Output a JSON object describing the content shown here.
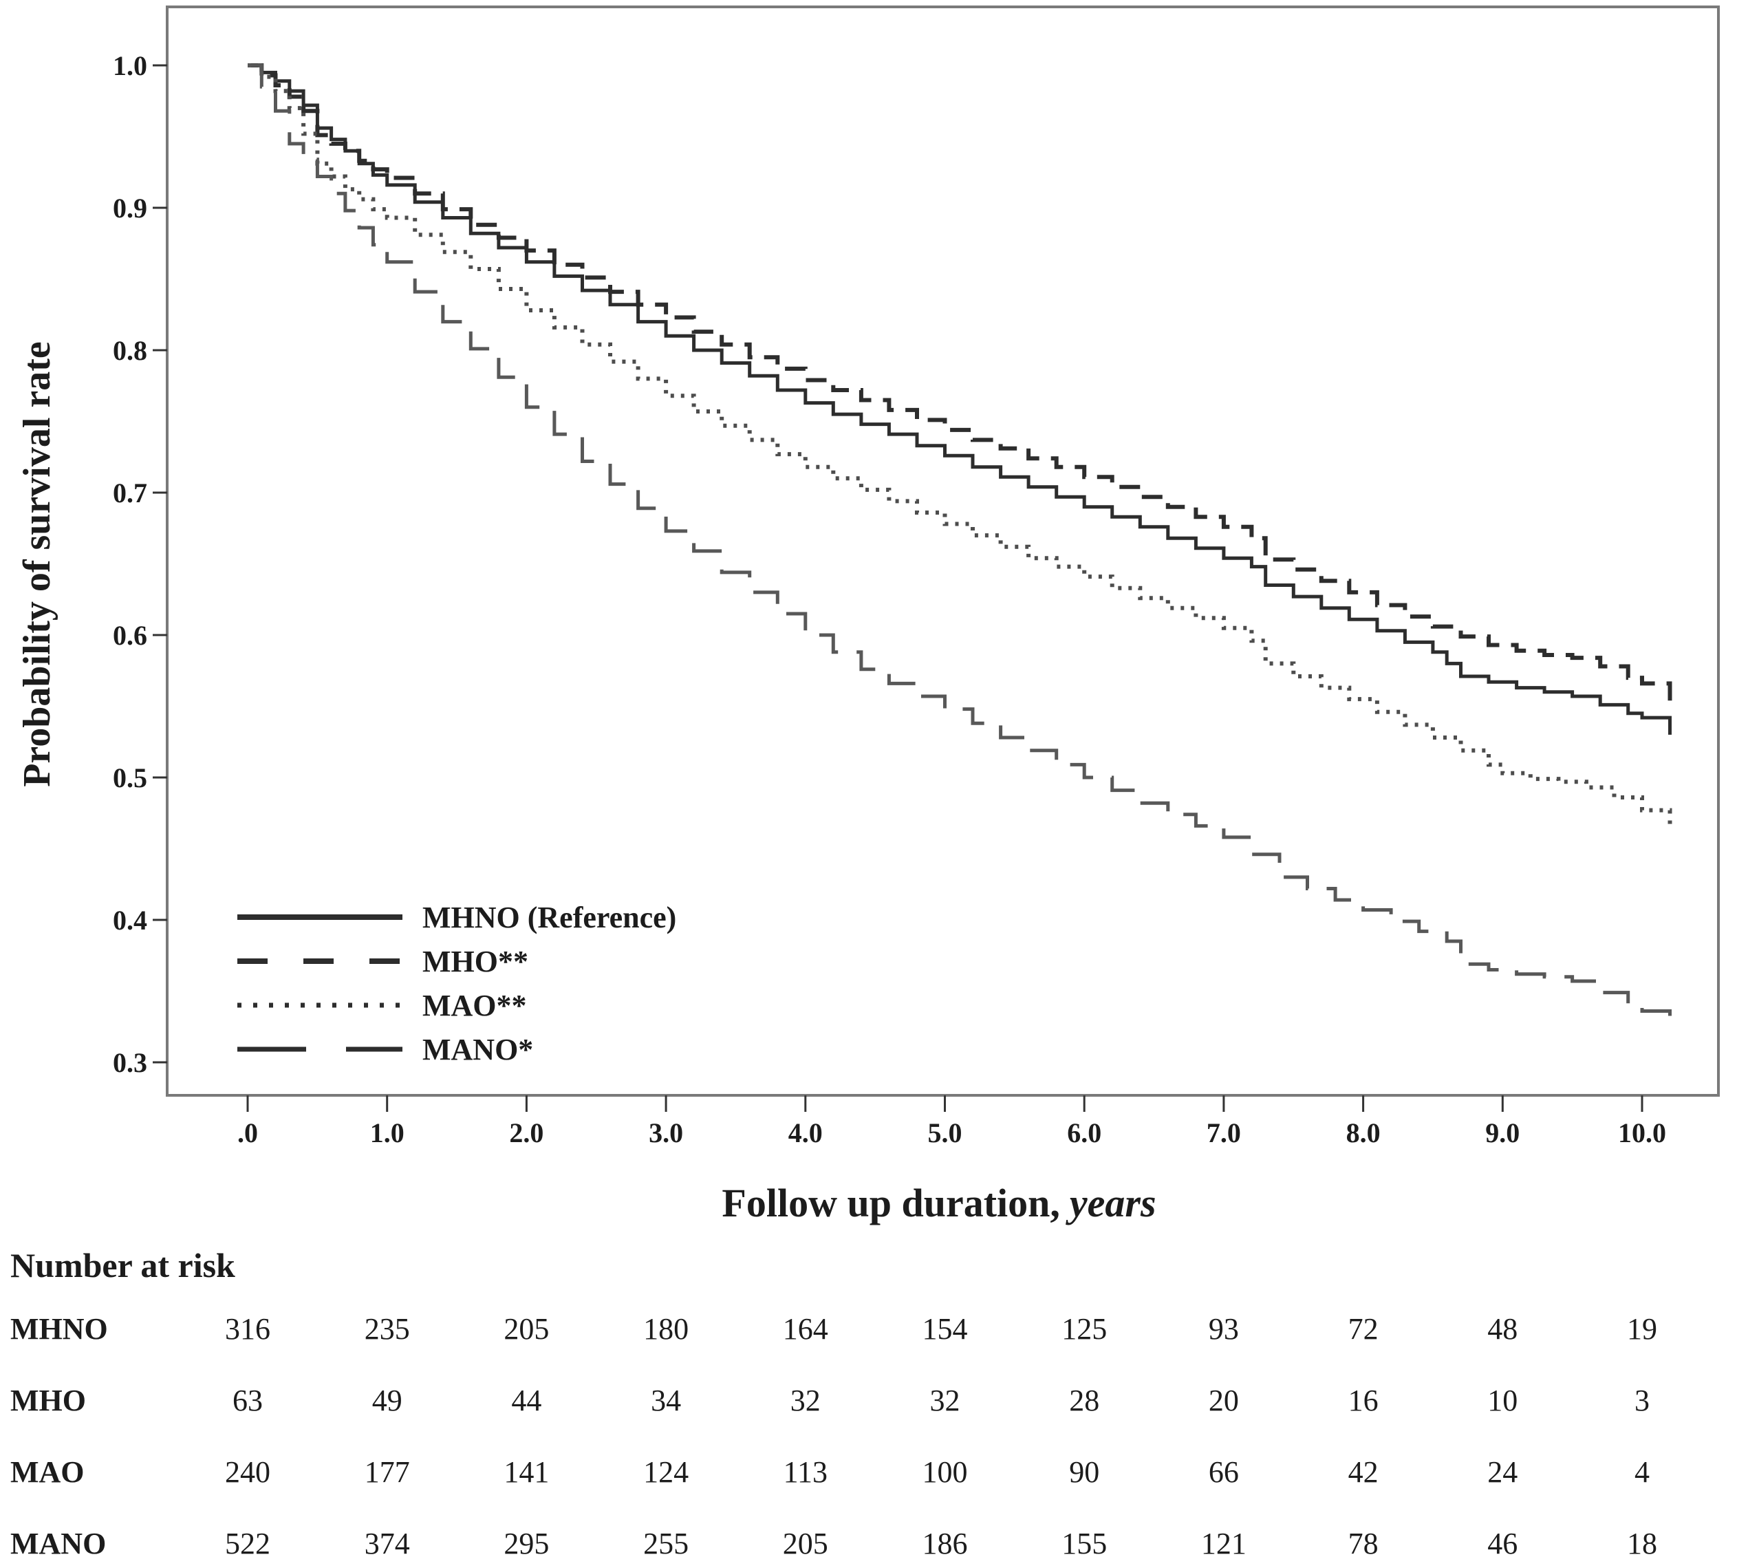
{
  "figure": {
    "ylabel": "Probability of survival rate",
    "xlabel_main": "Follow up duration,",
    "xlabel_italic": "years",
    "risk_title": "Number at risk"
  },
  "chart_data": {
    "type": "line",
    "subtype": "kaplan-meier-step",
    "title": "",
    "xlabel": "Follow up duration, years",
    "ylabel": "Probability of survival rate",
    "xlim": [
      -0.58,
      10.68
    ],
    "ylim": [
      0.253,
      1.042
    ],
    "grid": false,
    "legend_position": "inside-lower-left",
    "axis_color": "#7a7a7a",
    "text_color": "#1c1c1c",
    "xticks": {
      "values": [
        0,
        1,
        2,
        3,
        4,
        5,
        6,
        7,
        8,
        9,
        10
      ],
      "labels": [
        ".0",
        "1.0",
        "2.0",
        "3.0",
        "4.0",
        "5.0",
        "6.0",
        "7.0",
        "8.0",
        "9.0",
        "10.0"
      ]
    },
    "yticks": {
      "values": [
        1.0,
        0.9,
        0.8,
        0.7,
        0.6,
        0.5,
        0.4,
        0.3
      ],
      "labels": [
        "1.0",
        "0.9",
        "0.8",
        "0.7",
        "0.6",
        "0.5",
        "0.4",
        "0.3"
      ]
    },
    "series": [
      {
        "name": "MHNO (Reference)",
        "style": "solid",
        "color": "#2d2d2d",
        "points": [
          [
            0,
            1
          ],
          [
            0.1,
            0.995
          ],
          [
            0.2,
            0.989
          ],
          [
            0.3,
            0.982
          ],
          [
            0.4,
            0.972
          ],
          [
            0.5,
            0.956
          ],
          [
            0.6,
            0.948
          ],
          [
            0.7,
            0.94
          ],
          [
            0.8,
            0.931
          ],
          [
            0.9,
            0.923
          ],
          [
            1,
            0.916
          ],
          [
            1.2,
            0.904
          ],
          [
            1.4,
            0.893
          ],
          [
            1.6,
            0.882
          ],
          [
            1.8,
            0.872
          ],
          [
            2,
            0.862
          ],
          [
            2.2,
            0.852
          ],
          [
            2.4,
            0.842
          ],
          [
            2.6,
            0.832
          ],
          [
            2.8,
            0.82
          ],
          [
            3,
            0.81
          ],
          [
            3.2,
            0.8
          ],
          [
            3.4,
            0.791
          ],
          [
            3.6,
            0.782
          ],
          [
            3.8,
            0.772
          ],
          [
            4,
            0.763
          ],
          [
            4.2,
            0.755
          ],
          [
            4.4,
            0.748
          ],
          [
            4.6,
            0.741
          ],
          [
            4.8,
            0.733
          ],
          [
            5,
            0.726
          ],
          [
            5.2,
            0.718
          ],
          [
            5.4,
            0.711
          ],
          [
            5.6,
            0.704
          ],
          [
            5.8,
            0.697
          ],
          [
            6,
            0.69
          ],
          [
            6.2,
            0.683
          ],
          [
            6.4,
            0.676
          ],
          [
            6.6,
            0.668
          ],
          [
            6.8,
            0.661
          ],
          [
            7,
            0.654
          ],
          [
            7.2,
            0.648
          ],
          [
            7.3,
            0.635
          ],
          [
            7.5,
            0.627
          ],
          [
            7.7,
            0.619
          ],
          [
            7.9,
            0.611
          ],
          [
            8.1,
            0.603
          ],
          [
            8.3,
            0.595
          ],
          [
            8.5,
            0.588
          ],
          [
            8.6,
            0.58
          ],
          [
            8.7,
            0.571
          ],
          [
            8.9,
            0.567
          ],
          [
            9.1,
            0.563
          ],
          [
            9.3,
            0.56
          ],
          [
            9.5,
            0.557
          ],
          [
            9.7,
            0.551
          ],
          [
            9.9,
            0.545
          ],
          [
            10,
            0.542
          ],
          [
            10.2,
            0.53
          ]
        ]
      },
      {
        "name": "MHO**",
        "style": "dashed",
        "color": "#2d2d2d",
        "points": [
          [
            0,
            1
          ],
          [
            0.1,
            0.993
          ],
          [
            0.2,
            0.986
          ],
          [
            0.3,
            0.978
          ],
          [
            0.4,
            0.968
          ],
          [
            0.5,
            0.951
          ],
          [
            0.6,
            0.945
          ],
          [
            0.7,
            0.94
          ],
          [
            0.8,
            0.933
          ],
          [
            0.9,
            0.927
          ],
          [
            1,
            0.921
          ],
          [
            1.2,
            0.91
          ],
          [
            1.4,
            0.899
          ],
          [
            1.6,
            0.888
          ],
          [
            1.8,
            0.879
          ],
          [
            2,
            0.87
          ],
          [
            2.2,
            0.86
          ],
          [
            2.4,
            0.851
          ],
          [
            2.6,
            0.841
          ],
          [
            2.8,
            0.832
          ],
          [
            3,
            0.823
          ],
          [
            3.2,
            0.813
          ],
          [
            3.4,
            0.804
          ],
          [
            3.6,
            0.795
          ],
          [
            3.8,
            0.787
          ],
          [
            4,
            0.779
          ],
          [
            4.2,
            0.772
          ],
          [
            4.4,
            0.765
          ],
          [
            4.6,
            0.758
          ],
          [
            4.8,
            0.751
          ],
          [
            5,
            0.744
          ],
          [
            5.2,
            0.737
          ],
          [
            5.4,
            0.731
          ],
          [
            5.6,
            0.724
          ],
          [
            5.8,
            0.718
          ],
          [
            6,
            0.711
          ],
          [
            6.2,
            0.704
          ],
          [
            6.4,
            0.697
          ],
          [
            6.6,
            0.69
          ],
          [
            6.8,
            0.683
          ],
          [
            7,
            0.676
          ],
          [
            7.2,
            0.668
          ],
          [
            7.3,
            0.653
          ],
          [
            7.5,
            0.646
          ],
          [
            7.7,
            0.638
          ],
          [
            7.9,
            0.63
          ],
          [
            8.1,
            0.621
          ],
          [
            8.3,
            0.613
          ],
          [
            8.5,
            0.606
          ],
          [
            8.7,
            0.599
          ],
          [
            8.9,
            0.593
          ],
          [
            9.1,
            0.589
          ],
          [
            9.3,
            0.586
          ],
          [
            9.5,
            0.584
          ],
          [
            9.7,
            0.578
          ],
          [
            9.9,
            0.57
          ],
          [
            10,
            0.566
          ],
          [
            10.2,
            0.554
          ]
        ]
      },
      {
        "name": "MAO**",
        "style": "dotted",
        "color": "#4d4d4d",
        "points": [
          [
            0,
            1
          ],
          [
            0.1,
            0.992
          ],
          [
            0.2,
            0.982
          ],
          [
            0.3,
            0.97
          ],
          [
            0.4,
            0.952
          ],
          [
            0.5,
            0.931
          ],
          [
            0.6,
            0.922
          ],
          [
            0.7,
            0.913
          ],
          [
            0.8,
            0.906
          ],
          [
            0.9,
            0.899
          ],
          [
            1,
            0.893
          ],
          [
            1.2,
            0.881
          ],
          [
            1.4,
            0.869
          ],
          [
            1.6,
            0.857
          ],
          [
            1.8,
            0.843
          ],
          [
            2,
            0.828
          ],
          [
            2.2,
            0.816
          ],
          [
            2.4,
            0.804
          ],
          [
            2.6,
            0.792
          ],
          [
            2.8,
            0.78
          ],
          [
            3,
            0.768
          ],
          [
            3.2,
            0.757
          ],
          [
            3.4,
            0.747
          ],
          [
            3.6,
            0.737
          ],
          [
            3.8,
            0.727
          ],
          [
            4,
            0.718
          ],
          [
            4.2,
            0.71
          ],
          [
            4.4,
            0.702
          ],
          [
            4.6,
            0.694
          ],
          [
            4.8,
            0.686
          ],
          [
            5,
            0.678
          ],
          [
            5.2,
            0.67
          ],
          [
            5.4,
            0.662
          ],
          [
            5.6,
            0.654
          ],
          [
            5.8,
            0.648
          ],
          [
            6,
            0.641
          ],
          [
            6.2,
            0.633
          ],
          [
            6.4,
            0.626
          ],
          [
            6.6,
            0.619
          ],
          [
            6.8,
            0.612
          ],
          [
            7,
            0.605
          ],
          [
            7.2,
            0.596
          ],
          [
            7.3,
            0.58
          ],
          [
            7.5,
            0.571
          ],
          [
            7.7,
            0.563
          ],
          [
            7.9,
            0.555
          ],
          [
            8.1,
            0.546
          ],
          [
            8.3,
            0.537
          ],
          [
            8.5,
            0.528
          ],
          [
            8.7,
            0.519
          ],
          [
            8.9,
            0.509
          ],
          [
            9,
            0.503
          ],
          [
            9.2,
            0.499
          ],
          [
            9.4,
            0.497
          ],
          [
            9.6,
            0.493
          ],
          [
            9.8,
            0.486
          ],
          [
            10,
            0.477
          ],
          [
            10.2,
            0.464
          ]
        ]
      },
      {
        "name": "MANO*",
        "style": "longdash",
        "color": "#585858",
        "points": [
          [
            0,
            1
          ],
          [
            0.1,
            0.985
          ],
          [
            0.2,
            0.968
          ],
          [
            0.3,
            0.945
          ],
          [
            0.4,
            0.934
          ],
          [
            0.5,
            0.922
          ],
          [
            0.6,
            0.91
          ],
          [
            0.7,
            0.898
          ],
          [
            0.8,
            0.886
          ],
          [
            0.9,
            0.874
          ],
          [
            1,
            0.862
          ],
          [
            1.2,
            0.841
          ],
          [
            1.4,
            0.82
          ],
          [
            1.6,
            0.801
          ],
          [
            1.8,
            0.781
          ],
          [
            2,
            0.76
          ],
          [
            2.2,
            0.741
          ],
          [
            2.4,
            0.722
          ],
          [
            2.6,
            0.706
          ],
          [
            2.8,
            0.689
          ],
          [
            3,
            0.673
          ],
          [
            3.2,
            0.659
          ],
          [
            3.4,
            0.644
          ],
          [
            3.6,
            0.63
          ],
          [
            3.8,
            0.615
          ],
          [
            4,
            0.6
          ],
          [
            4.2,
            0.588
          ],
          [
            4.4,
            0.576
          ],
          [
            4.6,
            0.566
          ],
          [
            4.8,
            0.557
          ],
          [
            5,
            0.548
          ],
          [
            5.2,
            0.538
          ],
          [
            5.4,
            0.528
          ],
          [
            5.6,
            0.519
          ],
          [
            5.8,
            0.509
          ],
          [
            6,
            0.5
          ],
          [
            6.2,
            0.491
          ],
          [
            6.4,
            0.482
          ],
          [
            6.6,
            0.474
          ],
          [
            6.8,
            0.466
          ],
          [
            7,
            0.458
          ],
          [
            7.2,
            0.446
          ],
          [
            7.4,
            0.43
          ],
          [
            7.6,
            0.422
          ],
          [
            7.8,
            0.414
          ],
          [
            8,
            0.407
          ],
          [
            8.2,
            0.399
          ],
          [
            8.4,
            0.392
          ],
          [
            8.6,
            0.385
          ],
          [
            8.7,
            0.369
          ],
          [
            8.9,
            0.365
          ],
          [
            9.1,
            0.362
          ],
          [
            9.3,
            0.36
          ],
          [
            9.5,
            0.357
          ],
          [
            9.7,
            0.349
          ],
          [
            9.9,
            0.34
          ],
          [
            10,
            0.336
          ],
          [
            10.2,
            0.326
          ]
        ]
      }
    ],
    "number_at_risk": {
      "title": "Number at risk",
      "time_points": [
        0,
        1,
        2,
        3,
        4,
        5,
        6,
        7,
        8,
        9,
        10
      ],
      "rows": [
        {
          "label": "MHNO",
          "values": [
            316,
            235,
            205,
            180,
            164,
            154,
            125,
            93,
            72,
            48,
            19
          ]
        },
        {
          "label": "MHO",
          "values": [
            63,
            49,
            44,
            34,
            32,
            32,
            28,
            20,
            16,
            10,
            3
          ]
        },
        {
          "label": "MAO",
          "values": [
            240,
            177,
            141,
            124,
            113,
            100,
            90,
            66,
            42,
            24,
            4
          ]
        },
        {
          "label": "MANO",
          "values": [
            522,
            374,
            295,
            255,
            205,
            186,
            155,
            121,
            78,
            46,
            18
          ]
        }
      ]
    }
  }
}
